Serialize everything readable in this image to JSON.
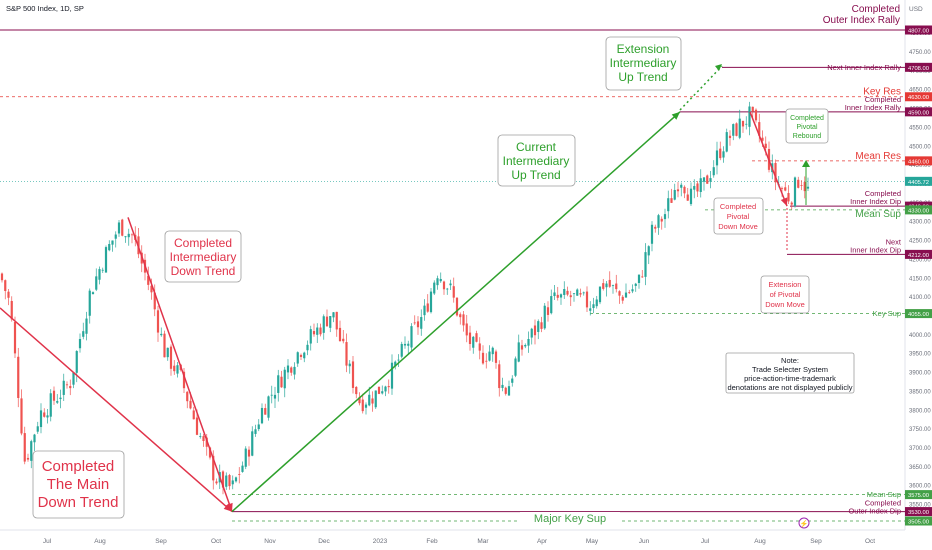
{
  "header": {
    "title": "S&P 500 Index, 1D, SP",
    "currency": "USD"
  },
  "top_right": {
    "line1": "Completed",
    "line2": "Outer Index Rally"
  },
  "colors": {
    "up": "#26a69a",
    "down": "#ef5350",
    "green_line": "#2ea02c",
    "red_line": "#e0334a",
    "purple": "#880e4f",
    "teal_level": "#26a69a"
  },
  "annotations": {
    "main_down": [
      "Completed",
      "The Main",
      "Down Trend"
    ],
    "int_down": [
      "Completed",
      "Intermediary",
      "Down Trend"
    ],
    "current_up": [
      "Current",
      "Intermediary",
      "Up Trend"
    ],
    "ext_up": [
      "Extension",
      "Intermediary",
      "Up Trend"
    ],
    "pivotal_down": [
      "Completed",
      "Pivotal",
      "Down Move"
    ],
    "pivotal_rebound": [
      "Completed",
      "Pivotal",
      "Rebound"
    ],
    "ext_pivotal": [
      "Extension",
      "of Pivotal",
      "Down Move"
    ],
    "note": [
      "Note:",
      "Trade Selecter System",
      "price-action-time-trademark",
      "denotations are not displayed publicly"
    ]
  },
  "chart_data": {
    "type": "candlestick",
    "title": "S&P 500 Index, 1D, SP",
    "x_labels": [
      "Jul",
      "Aug",
      "Sep",
      "Oct",
      "Nov",
      "Dec",
      "2023",
      "Feb",
      "Mar",
      "Apr",
      "May",
      "Jun",
      "Jul",
      "Aug",
      "Sep",
      "Oct"
    ],
    "y_ticks": [
      3500,
      3550,
      3600,
      3650,
      3700,
      3750,
      3800,
      3850,
      3900,
      3950,
      4000,
      4050,
      4100,
      4150,
      4200,
      4250,
      4300,
      4350,
      4400,
      4450,
      4500,
      4550,
      4600,
      4650,
      4700,
      4750,
      4800
    ],
    "ylim": [
      3490,
      4830
    ],
    "last_price": "4405.72",
    "levels": [
      {
        "name": "Completed Outer Index Rally",
        "value": 4807.0,
        "tag": "4807.00",
        "color": "#880e4f",
        "style": "solid"
      },
      {
        "name": "Next Inner Index Rally",
        "value": 4708.0,
        "tag": "4708.00",
        "color": "#880e4f",
        "style": "solid"
      },
      {
        "name": "Key Res",
        "value": 4630.0,
        "tag": "4630.00",
        "color": "#e53935",
        "style": "dashed"
      },
      {
        "name": "Completed Inner Index Rally",
        "value": 4590.0,
        "tag": "4590.00",
        "color": "#880e4f",
        "style": "solid"
      },
      {
        "name": "Mean Res",
        "value": 4460.0,
        "tag": "4460.00",
        "color": "#e53935",
        "style": "dashed"
      },
      {
        "name": "Completed Inner Index Dip",
        "value": 4340.0,
        "tag": "4340.00",
        "color": "#880e4f",
        "style": "solid"
      },
      {
        "name": "Mean Sup",
        "value": 4330.0,
        "tag": "4330.00",
        "color": "#43a047",
        "style": "dashed"
      },
      {
        "name": "Next Inner Index Dip",
        "value": 4212.0,
        "tag": "4212.00",
        "color": "#880e4f",
        "style": "solid"
      },
      {
        "name": "Key Sup",
        "value": 4055.0,
        "tag": "4055.00",
        "color": "#43a047",
        "style": "dashed"
      },
      {
        "name": "Mean Sup",
        "value": 3575.0,
        "tag": "3575.00",
        "color": "#43a047",
        "style": "dashed"
      },
      {
        "name": "Completed Outer Index Dip",
        "value": 3530.0,
        "tag": "3530.00",
        "color": "#880e4f",
        "style": "solid"
      },
      {
        "name": "Major Key Sup",
        "value": 3505.0,
        "tag": "3505.00",
        "color": "#43a047",
        "style": "dashed"
      }
    ],
    "waypoints": [
      [
        0,
        4160
      ],
      [
        10,
        4080
      ],
      [
        25,
        3660
      ],
      [
        40,
        3790
      ],
      [
        55,
        3830
      ],
      [
        70,
        3870
      ],
      [
        90,
        4110
      ],
      [
        105,
        4210
      ],
      [
        120,
        4290
      ],
      [
        133,
        4260
      ],
      [
        150,
        4120
      ],
      [
        165,
        3950
      ],
      [
        180,
        3890
      ],
      [
        200,
        3730
      ],
      [
        215,
        3620
      ],
      [
        232,
        3590
      ],
      [
        245,
        3670
      ],
      [
        262,
        3800
      ],
      [
        280,
        3880
      ],
      [
        300,
        3960
      ],
      [
        320,
        4020
      ],
      [
        332,
        4060
      ],
      [
        345,
        3940
      ],
      [
        360,
        3820
      ],
      [
        375,
        3840
      ],
      [
        390,
        3890
      ],
      [
        410,
        3990
      ],
      [
        425,
        4060
      ],
      [
        437,
        4170
      ],
      [
        450,
        4120
      ],
      [
        465,
        4000
      ],
      [
        480,
        3940
      ],
      [
        492,
        3960
      ],
      [
        500,
        3870
      ],
      [
        507,
        3850
      ],
      [
        518,
        3950
      ],
      [
        535,
        4010
      ],
      [
        552,
        4090
      ],
      [
        570,
        4100
      ],
      [
        590,
        4080
      ],
      [
        605,
        4140
      ],
      [
        620,
        4100
      ],
      [
        638,
        4130
      ],
      [
        652,
        4270
      ],
      [
        665,
        4320
      ],
      [
        680,
        4420
      ],
      [
        692,
        4360
      ],
      [
        705,
        4400
      ],
      [
        722,
        4500
      ],
      [
        738,
        4550
      ],
      [
        750,
        4580
      ],
      [
        762,
        4510
      ],
      [
        775,
        4410
      ],
      [
        790,
        4360
      ],
      [
        800,
        4420
      ],
      [
        808,
        4380
      ]
    ],
    "trend_lines": [
      {
        "name": "Main Down Trend",
        "from": [
          0,
          4070
        ],
        "to": [
          232,
          3530
        ],
        "color": "#e0334a"
      },
      {
        "name": "Intermediary Down Trend",
        "from": [
          128,
          4310
        ],
        "to": [
          232,
          3530
        ],
        "color": "#e0334a"
      },
      {
        "name": "Current Intermediary Up Trend",
        "from": [
          232,
          3530
        ],
        "to": [
          680,
          4590
        ],
        "color": "#2ea02c"
      },
      {
        "name": "Pivotal Down Move",
        "from": [
          750,
          4590
        ],
        "to": [
          787,
          4340
        ],
        "color": "#e0334a"
      }
    ]
  }
}
